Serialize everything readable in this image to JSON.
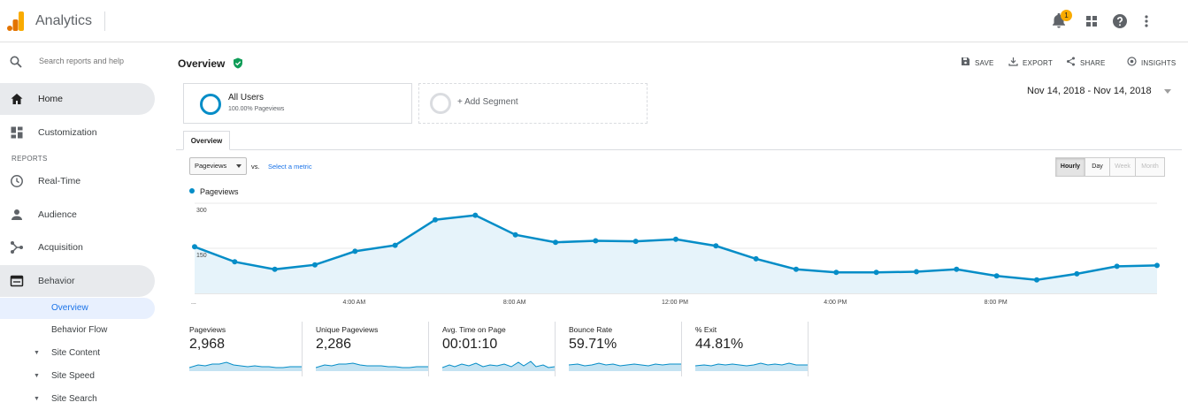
{
  "app": {
    "title": "Analytics",
    "notification_count": "1"
  },
  "search": {
    "placeholder": "Search reports and help"
  },
  "sidebar": {
    "home": "Home",
    "customization": "Customization",
    "reports_header": "REPORTS",
    "realtime": "Real-Time",
    "audience": "Audience",
    "acquisition": "Acquisition",
    "behavior": "Behavior",
    "behavior_sub": [
      "Overview",
      "Behavior Flow",
      "Site Content",
      "Site Speed",
      "Site Search"
    ]
  },
  "page": {
    "title": "Overview"
  },
  "actions": {
    "save": "SAVE",
    "export": "EXPORT",
    "share": "SHARE",
    "insights": "INSIGHTS"
  },
  "segments": {
    "all_users": "All Users",
    "all_users_sub": "100.00% Pageviews",
    "add": "+ Add Segment"
  },
  "date_range": "Nov 14, 2018 - Nov 14, 2018",
  "tabs": {
    "overview": "Overview"
  },
  "controls": {
    "metric": "Pageviews",
    "vs": "vs.",
    "select_metric": "Select a metric"
  },
  "granularity": [
    "Hourly",
    "Day",
    "Week",
    "Month"
  ],
  "chart_data": {
    "type": "area",
    "series": [
      {
        "name": "Pageviews",
        "values": [
          155,
          105,
          80,
          95,
          140,
          160,
          245,
          260,
          195,
          170,
          175,
          173,
          180,
          158,
          115,
          80,
          70,
          70,
          72,
          80,
          58,
          45,
          65,
          90,
          93
        ]
      }
    ],
    "x_ticks": [
      "...",
      "4:00 AM",
      "8:00 AM",
      "12:00 PM",
      "4:00 PM",
      "8:00 PM"
    ],
    "y_ticks": [
      "300",
      "150"
    ],
    "ylim": [
      0,
      300
    ],
    "color": "#058dc7",
    "grid": true,
    "legend": "top-left"
  },
  "metrics": [
    {
      "label": "Pageviews",
      "value": "2,968"
    },
    {
      "label": "Unique Pageviews",
      "value": "2,286"
    },
    {
      "label": "Avg. Time on Page",
      "value": "00:01:10"
    },
    {
      "label": "Bounce Rate",
      "value": "59.71%"
    },
    {
      "label": "% Exit",
      "value": "44.81%"
    }
  ]
}
